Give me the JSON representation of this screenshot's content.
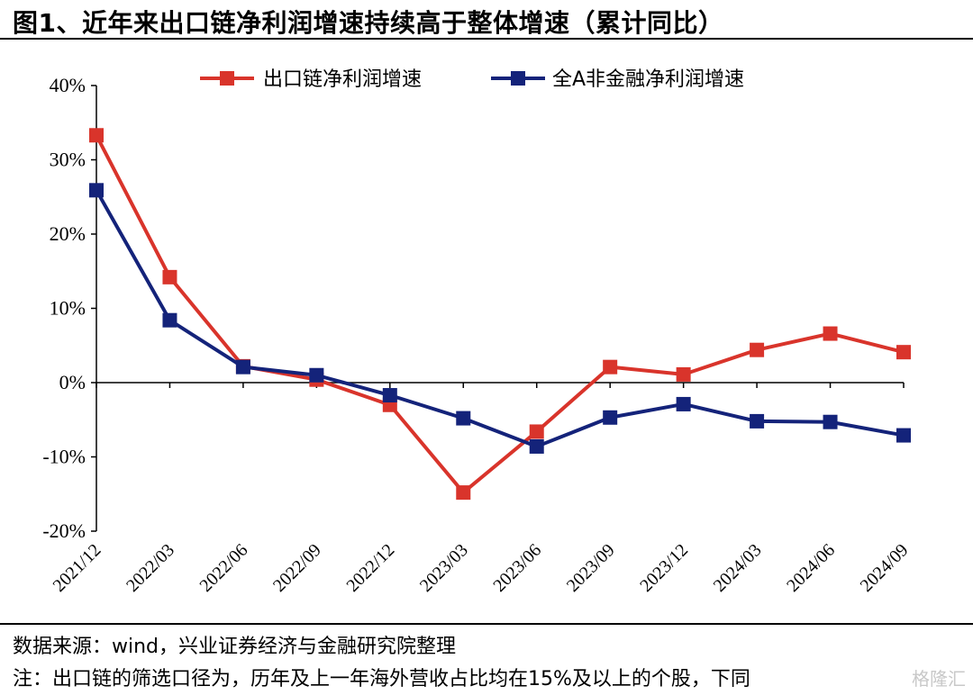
{
  "header": {
    "title": "图1、近年来出口链净利润增速持续高于整体增速（累计同比）"
  },
  "chart_data": {
    "type": "line",
    "title": "图1、近年来出口链净利润增速持续高于整体增速（累计同比）",
    "xlabel": "",
    "ylabel": "",
    "ylim": [
      -20,
      40
    ],
    "yticks": [
      "40%",
      "30%",
      "20%",
      "10%",
      "0%",
      "-10%",
      "-20%"
    ],
    "ytick_values": [
      40,
      30,
      20,
      10,
      0,
      -10,
      -20
    ],
    "categories": [
      "2021/12",
      "2022/03",
      "2022/06",
      "2022/09",
      "2022/12",
      "2023/03",
      "2023/06",
      "2023/09",
      "2023/12",
      "2024/03",
      "2024/06",
      "2024/09"
    ],
    "grid": false,
    "legend_position": "top-center",
    "series": [
      {
        "name": "出口链净利润增速",
        "color": "#d9342b",
        "values": [
          33.3,
          14.2,
          2.2,
          0.4,
          -3.0,
          -14.8,
          -6.6,
          2.1,
          1.1,
          4.4,
          6.6,
          4.1
        ]
      },
      {
        "name": "全A非金融净利润增速",
        "color": "#14237a",
        "values": [
          25.9,
          8.4,
          2.1,
          1.0,
          -1.7,
          -4.8,
          -8.6,
          -4.7,
          -2.9,
          -5.2,
          -5.3,
          -7.1
        ]
      }
    ]
  },
  "footer": {
    "source": "数据来源：wind，兴业证券经济与金融研究院整理",
    "note": "注：出口链的筛选口径为，历年及上一年海外营收占比均在15%及以上的个股，下同",
    "watermark": "格隆汇"
  }
}
